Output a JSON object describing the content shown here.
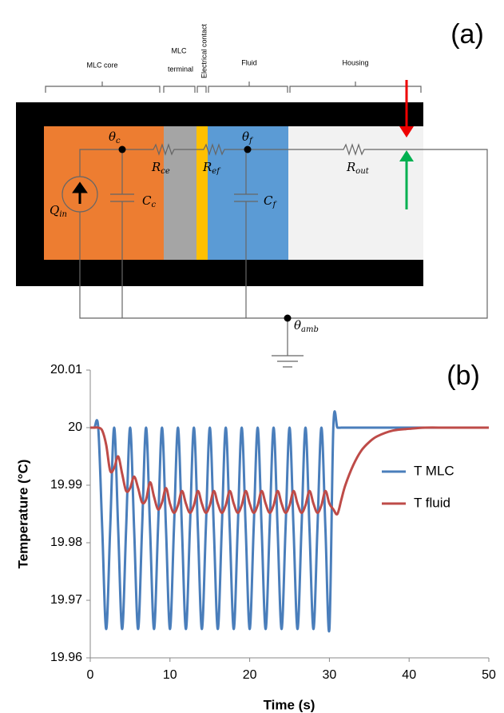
{
  "diagram": {
    "panel_label": "(a)",
    "regions": [
      "MLC core",
      "MLC",
      "terminal",
      "Electrical contact",
      "Fluid",
      "Housing"
    ],
    "symbols": {
      "theta_c": {
        "base": "θ",
        "sub": "c"
      },
      "theta_f": {
        "base": "θ",
        "sub": "f"
      },
      "theta_amb": {
        "base": "θ",
        "sub": "amb"
      },
      "q_in": {
        "base": "Q",
        "sub": "in"
      },
      "c_c": {
        "base": "C",
        "sub": "c"
      },
      "c_f": {
        "base": "C",
        "sub": "f"
      },
      "r_ce": {
        "base": "R",
        "sub": "ce"
      },
      "r_ef": {
        "base": "R",
        "sub": "ef"
      },
      "r_out": {
        "base": "R",
        "sub": "out"
      }
    }
  },
  "chart_data": {
    "type": "line",
    "annotation": "(b)",
    "x_label": "Time (s)",
    "y_label": "Temperature (°C)",
    "x": [
      0,
      0.5,
      1,
      1.5,
      2,
      2.5,
      3,
      3.5,
      4,
      4.5,
      5,
      5.5,
      6,
      6.5,
      7,
      7.5,
      8,
      8.5,
      9,
      9.5,
      10,
      10.5,
      11,
      11.5,
      12,
      12.5,
      13,
      13.5,
      14,
      14.5,
      15,
      15.5,
      16,
      16.5,
      17,
      17.5,
      18,
      18.5,
      19,
      19.5,
      20,
      20.5,
      21,
      21.5,
      22,
      22.5,
      23,
      23.5,
      24,
      24.5,
      25,
      25.5,
      26,
      26.5,
      27,
      27.5,
      28,
      28.5,
      29,
      29.5,
      30,
      30.5,
      31,
      31.5,
      32,
      33,
      34,
      35,
      36,
      38,
      40,
      42,
      45,
      50
    ],
    "series": [
      {
        "name": "T MLC",
        "color": "#4a7ebb",
        "values": [
          20,
          20,
          20,
          19.9825,
          19.965,
          19.9825,
          20,
          19.9825,
          19.965,
          19.9825,
          20,
          19.9825,
          19.965,
          19.9825,
          20,
          19.9825,
          19.965,
          19.9825,
          20,
          19.9825,
          19.965,
          19.9825,
          20,
          19.9825,
          19.965,
          19.9825,
          20,
          19.9825,
          19.965,
          19.9825,
          20,
          19.9825,
          19.965,
          19.9825,
          20,
          19.9825,
          19.965,
          19.9825,
          20,
          19.9825,
          19.965,
          19.9825,
          20,
          19.9825,
          19.965,
          19.9825,
          20,
          19.9825,
          19.965,
          19.9825,
          20,
          19.9825,
          19.965,
          19.9825,
          20,
          19.9825,
          19.965,
          19.9825,
          20,
          19.9825,
          19.965,
          20.0003,
          20,
          20,
          20,
          20,
          20,
          20,
          20,
          20,
          20,
          20,
          20,
          20
        ]
      },
      {
        "name": "T fluid",
        "color": "#be4b48",
        "values": [
          20,
          20,
          20,
          19.9995,
          19.997,
          19.9925,
          19.993,
          19.995,
          19.992,
          19.989,
          19.9895,
          19.9915,
          19.9895,
          19.987,
          19.9875,
          19.9905,
          19.988,
          19.9858,
          19.987,
          19.9895,
          19.9868,
          19.9852,
          19.9865,
          19.989,
          19.9868,
          19.9852,
          19.9865,
          19.989,
          19.9868,
          19.9852,
          19.9865,
          19.989,
          19.9868,
          19.9852,
          19.9865,
          19.989,
          19.9868,
          19.9852,
          19.9865,
          19.989,
          19.9868,
          19.9852,
          19.9865,
          19.989,
          19.9868,
          19.9852,
          19.9865,
          19.989,
          19.9868,
          19.9852,
          19.9865,
          19.989,
          19.9868,
          19.9852,
          19.9865,
          19.989,
          19.9868,
          19.9852,
          19.9865,
          19.989,
          19.9868,
          19.9858,
          19.985,
          19.9875,
          19.99,
          19.9935,
          19.996,
          19.9975,
          19.9985,
          19.9995,
          19.9998,
          20,
          20,
          20
        ]
      }
    ],
    "xlim": [
      0,
      50
    ],
    "ylim": [
      19.96,
      20.01
    ],
    "xticks": [
      0,
      10,
      20,
      30,
      40,
      50
    ],
    "yticks": [
      19.96,
      19.97,
      19.98,
      19.99,
      20,
      20.01
    ],
    "grid": false,
    "legend": "right"
  }
}
